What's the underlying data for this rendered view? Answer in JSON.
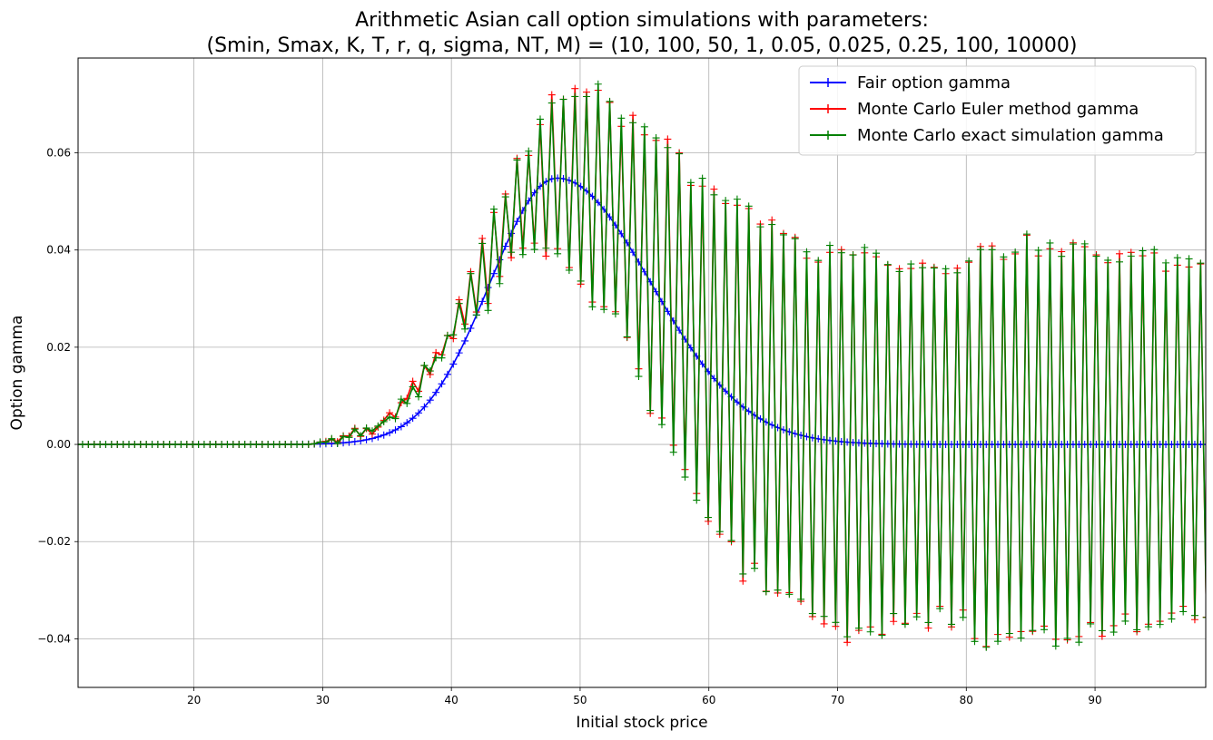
{
  "chart_data": {
    "type": "line",
    "title_line1": "Arithmetic Asian call option simulations with parameters:",
    "title_line2": "(Smin, Smax, K, T, r, q, sigma, NT, M) = (10, 100, 50, 1, 0.05, 0.025, 0.25, 100, 10000)",
    "xlabel": "Initial stock price",
    "ylabel": "Option gamma",
    "xlim": [
      11.0,
      98.6
    ],
    "ylim": [
      -0.05,
      0.0795
    ],
    "xticks": [
      20,
      30,
      40,
      50,
      60,
      70,
      80,
      90
    ],
    "yticks": [
      -0.04,
      -0.02,
      0.0,
      0.02,
      0.04,
      0.06
    ],
    "ytick_labels": [
      "−0.04",
      "−0.02",
      "0.00",
      "0.02",
      "0.04",
      "0.06"
    ],
    "grid": true,
    "legend_position": "upper right",
    "x_start": 10,
    "x_end": 100,
    "n_points": 201,
    "series": [
      {
        "name": "Fair option gamma",
        "color": "#0000ff",
        "marker": "+",
        "peak_x": 48.2,
        "peak_y": 0.0548,
        "left_width": 5.2,
        "right_width": 7.3
      },
      {
        "name": "Monte Carlo Euler method gamma",
        "color": "#ff0000",
        "marker": "+",
        "oscillating": true
      },
      {
        "name": "Monte Carlo exact simulation gamma",
        "color": "#008000",
        "marker": "+",
        "oscillating": true
      }
    ],
    "mc_high_anchors": [
      [
        30,
        0.0005
      ],
      [
        32,
        0.002
      ],
      [
        35,
        0.0055
      ],
      [
        38,
        0.015
      ],
      [
        41,
        0.031
      ],
      [
        43,
        0.046
      ],
      [
        45,
        0.056
      ],
      [
        47,
        0.068
      ],
      [
        49,
        0.071
      ],
      [
        51,
        0.0735
      ],
      [
        53,
        0.068
      ],
      [
        55,
        0.065
      ],
      [
        57,
        0.062
      ],
      [
        59,
        0.054
      ],
      [
        61,
        0.05
      ],
      [
        63,
        0.048
      ],
      [
        65,
        0.043
      ],
      [
        67,
        0.041
      ],
      [
        69,
        0.039
      ],
      [
        71,
        0.041
      ],
      [
        73,
        0.04
      ],
      [
        75,
        0.037
      ],
      [
        77,
        0.037
      ],
      [
        79,
        0.036
      ],
      [
        81,
        0.04
      ],
      [
        83,
        0.04
      ],
      [
        85,
        0.042
      ],
      [
        87,
        0.04
      ],
      [
        89,
        0.04
      ],
      [
        91,
        0.039
      ],
      [
        93,
        0.038
      ],
      [
        95,
        0.04
      ],
      [
        97,
        0.037
      ],
      [
        99,
        0.036
      ]
    ],
    "mc_low_anchors": [
      [
        30,
        0.0002
      ],
      [
        32,
        0.0008
      ],
      [
        35,
        0.004
      ],
      [
        38,
        0.012
      ],
      [
        41,
        0.024
      ],
      [
        43,
        0.03
      ],
      [
        45,
        0.04
      ],
      [
        47,
        0.04
      ],
      [
        49,
        0.038
      ],
      [
        51,
        0.029
      ],
      [
        53,
        0.025
      ],
      [
        55,
        0.012
      ],
      [
        57,
        -0.002
      ],
      [
        59,
        -0.012
      ],
      [
        61,
        -0.019
      ],
      [
        63,
        -0.026
      ],
      [
        65,
        -0.03
      ],
      [
        67,
        -0.032
      ],
      [
        69,
        -0.035
      ],
      [
        71,
        -0.038
      ],
      [
        73,
        -0.038
      ],
      [
        75,
        -0.036
      ],
      [
        77,
        -0.035
      ],
      [
        79,
        -0.036
      ],
      [
        81,
        -0.04
      ],
      [
        83,
        -0.04
      ],
      [
        85,
        -0.04
      ],
      [
        87,
        -0.04
      ],
      [
        89,
        -0.039
      ],
      [
        91,
        -0.038
      ],
      [
        93,
        -0.037
      ],
      [
        95,
        -0.038
      ],
      [
        97,
        -0.036
      ],
      [
        99,
        -0.037
      ]
    ]
  }
}
